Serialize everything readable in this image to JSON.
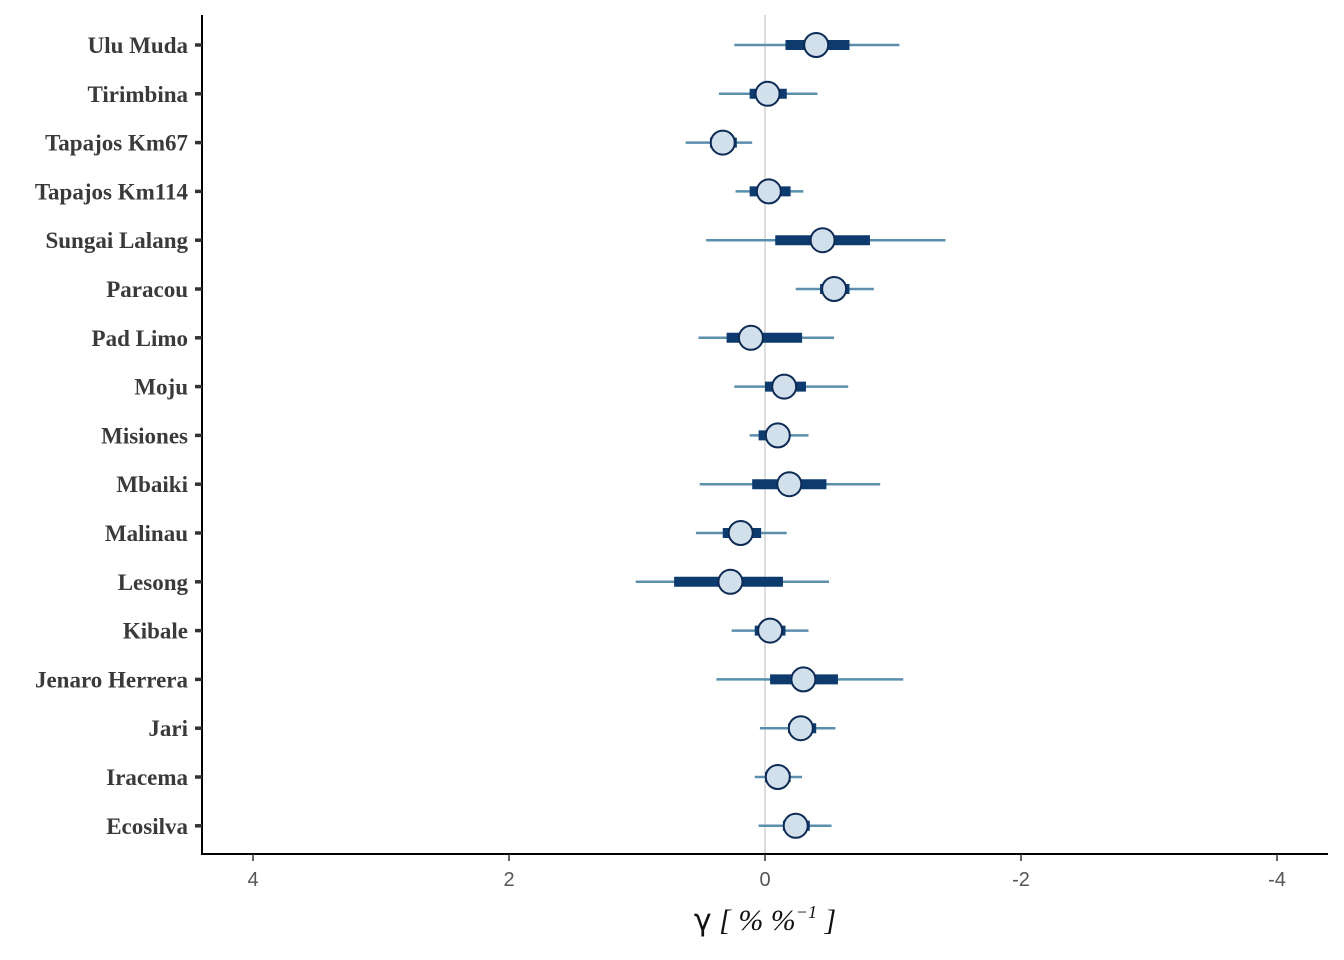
{
  "chart_data": {
    "type": "forest",
    "xlabel": {
      "symbol": "γ",
      "open": " [ ",
      "unit": "% %",
      "exponent": "−1",
      "close": " ]"
    },
    "x_reversed": true,
    "xlim": [
      4.4,
      -4.2
    ],
    "x_ticks": [
      4,
      2,
      0,
      -2,
      -4
    ],
    "x_tick_labels": [
      "4",
      "2",
      "0",
      "-2",
      "-4"
    ],
    "reference_line": 0,
    "grid": false,
    "colors": {
      "outer_interval": "#5b8fad",
      "inner_interval": "#0d3b6e",
      "point_fill": "#d2e0ec",
      "point_stroke": "#0d2b55",
      "reference_line": "#dddddd",
      "axis": "#000000"
    },
    "series": [
      {
        "site": "Ulu Muda",
        "median": -0.4,
        "inner": [
          -0.16,
          -0.66
        ],
        "outer": [
          0.24,
          -1.05
        ]
      },
      {
        "site": "Tirimbina",
        "median": -0.02,
        "inner": [
          0.12,
          -0.17
        ],
        "outer": [
          0.36,
          -0.41
        ]
      },
      {
        "site": "Tapajos Km67",
        "median": 0.33,
        "inner": [
          0.43,
          0.22
        ],
        "outer": [
          0.62,
          0.1
        ]
      },
      {
        "site": "Tapajos Km114",
        "median": -0.03,
        "inner": [
          0.12,
          -0.2
        ],
        "outer": [
          0.23,
          -0.3
        ]
      },
      {
        "site": "Sungai Lalang",
        "median": -0.45,
        "inner": [
          -0.08,
          -0.82
        ],
        "outer": [
          0.46,
          -1.41
        ]
      },
      {
        "site": "Paracou",
        "median": -0.54,
        "inner": [
          -0.43,
          -0.66
        ],
        "outer": [
          -0.24,
          -0.85
        ]
      },
      {
        "site": "Pad Limo",
        "median": 0.11,
        "inner": [
          0.3,
          -0.29
        ],
        "outer": [
          0.52,
          -0.54
        ]
      },
      {
        "site": "Moju",
        "median": -0.15,
        "inner": [
          0.0,
          -0.32
        ],
        "outer": [
          0.24,
          -0.65
        ]
      },
      {
        "site": "Misiones",
        "median": -0.1,
        "inner": [
          0.05,
          -0.18
        ],
        "outer": [
          0.12,
          -0.34
        ]
      },
      {
        "site": "Mbaiki",
        "median": -0.19,
        "inner": [
          0.1,
          -0.48
        ],
        "outer": [
          0.51,
          -0.9
        ]
      },
      {
        "site": "Malinau",
        "median": 0.19,
        "inner": [
          0.33,
          0.03
        ],
        "outer": [
          0.54,
          -0.17
        ]
      },
      {
        "site": "Lesong",
        "median": 0.27,
        "inner": [
          0.71,
          -0.14
        ],
        "outer": [
          1.01,
          -0.5
        ]
      },
      {
        "site": "Kibale",
        "median": -0.04,
        "inner": [
          0.08,
          -0.16
        ],
        "outer": [
          0.26,
          -0.34
        ]
      },
      {
        "site": "Jenaro Herrera",
        "median": -0.3,
        "inner": [
          -0.04,
          -0.57
        ],
        "outer": [
          0.38,
          -1.08
        ]
      },
      {
        "site": "Jari",
        "median": -0.28,
        "inner": [
          -0.18,
          -0.4
        ],
        "outer": [
          0.04,
          -0.55
        ]
      },
      {
        "site": "Iracema",
        "median": -0.1,
        "inner": [
          0.0,
          -0.2
        ],
        "outer": [
          0.08,
          -0.29
        ]
      },
      {
        "site": "Ecosilva",
        "median": -0.24,
        "inner": [
          -0.14,
          -0.35
        ],
        "outer": [
          0.05,
          -0.52
        ]
      }
    ]
  }
}
